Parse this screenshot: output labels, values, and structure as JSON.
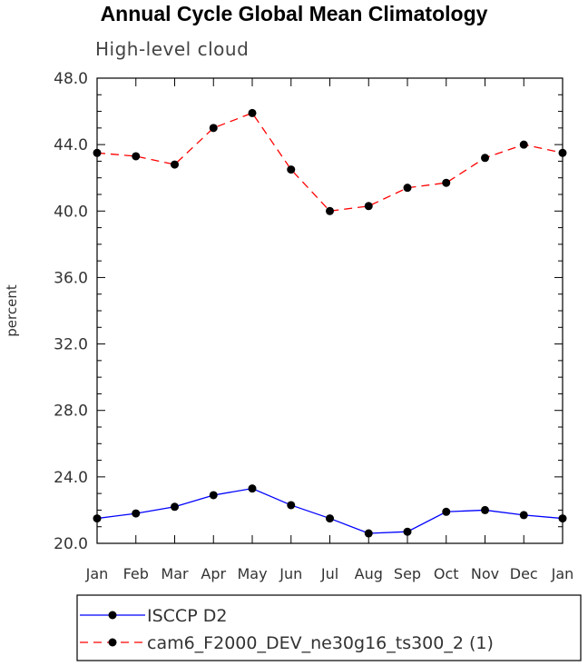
{
  "chart_data": {
    "type": "line",
    "title": "Annual Cycle Global Mean Climatology",
    "subtitle": "High-level cloud",
    "xlabel": "",
    "ylabel": "percent",
    "categories": [
      "Jan",
      "Feb",
      "Mar",
      "Apr",
      "May",
      "Jun",
      "Jul",
      "Aug",
      "Sep",
      "Oct",
      "Nov",
      "Dec",
      "Jan"
    ],
    "ylim": [
      20.0,
      48.0
    ],
    "yticks": [
      "20.0",
      "24.0",
      "28.0",
      "32.0",
      "36.0",
      "40.0",
      "44.0",
      "48.0"
    ],
    "grid": false,
    "legend_position": "bottom",
    "series": [
      {
        "name": "ISCCP D2",
        "color": "#0000ff",
        "line_style": "solid",
        "marker": "filled-circle",
        "values": [
          21.5,
          21.8,
          22.2,
          22.9,
          23.3,
          22.3,
          21.5,
          20.6,
          20.7,
          21.9,
          22.0,
          21.7,
          21.5
        ]
      },
      {
        "name": "cam6_F2000_DEV_ne30g16_ts300_2 (1)",
        "color": "#ff0000",
        "line_style": "dashed",
        "marker": "filled-circle",
        "values": [
          43.5,
          43.3,
          42.8,
          45.0,
          45.9,
          42.5,
          40.0,
          40.3,
          41.4,
          41.7,
          43.2,
          44.0,
          43.5
        ]
      }
    ]
  }
}
